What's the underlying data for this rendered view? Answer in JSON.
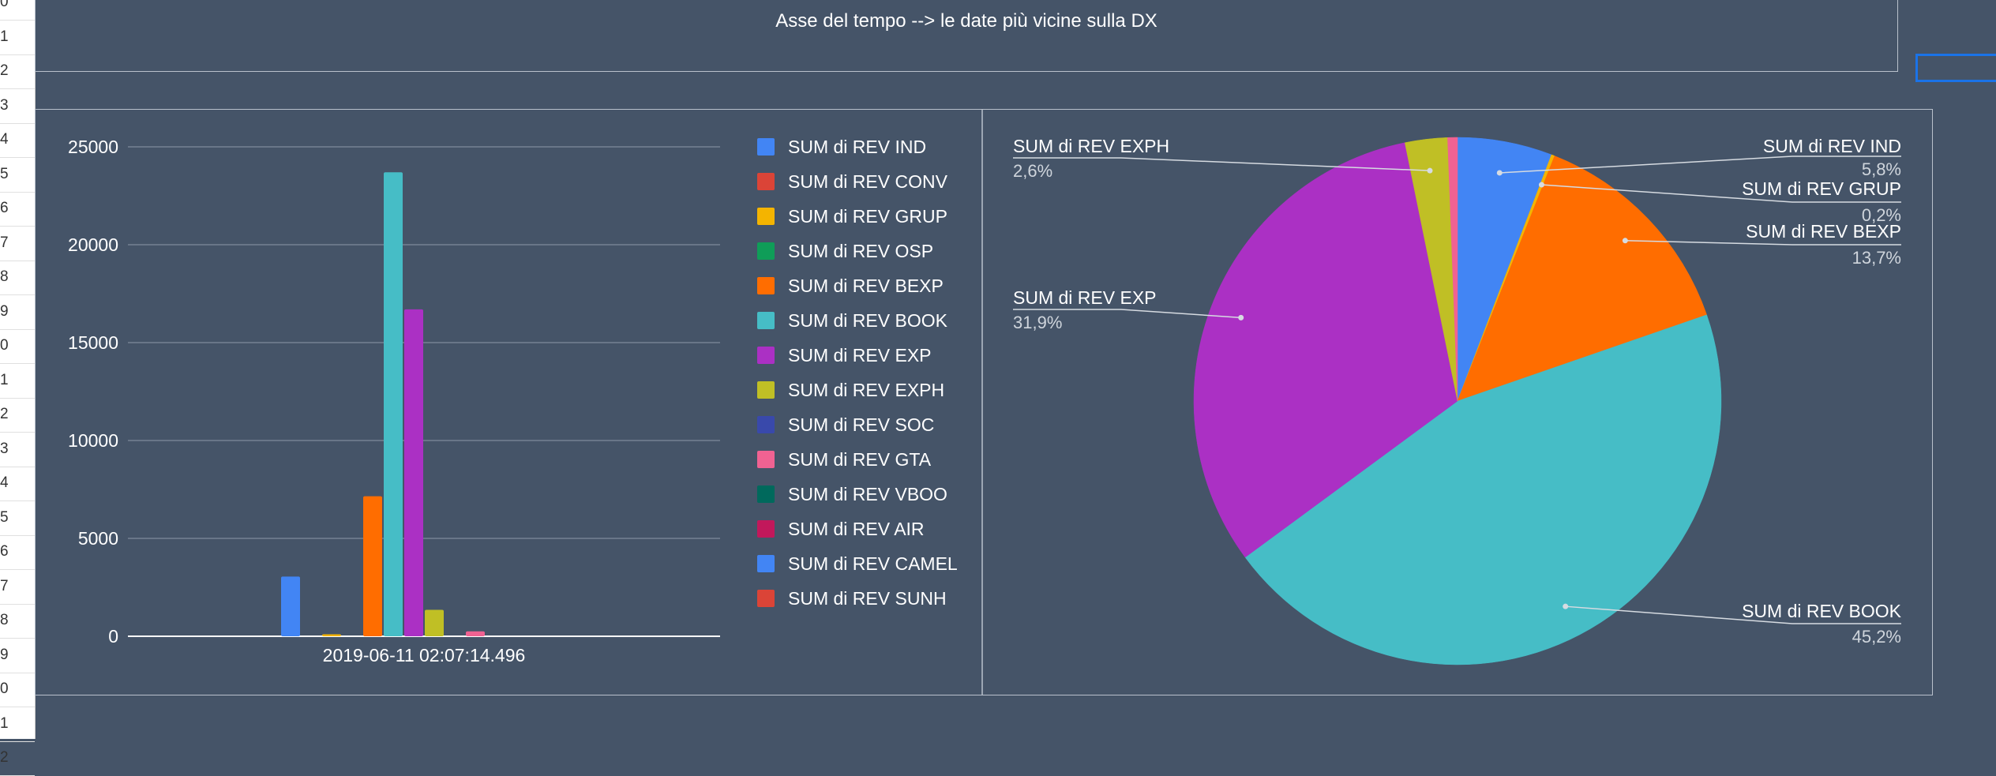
{
  "header": {
    "title": "Asse del tempo --> le date più vicine sulla DX"
  },
  "row_numbers": [
    "0",
    "1",
    "2",
    "3",
    "4",
    "5",
    "6",
    "7",
    "8",
    "9",
    "0",
    "1",
    "2",
    "3",
    "4",
    "5",
    "6",
    "7",
    "8",
    "9",
    "0",
    "1",
    "2"
  ],
  "colors": {
    "background": "#455468",
    "gridline": "#8d99a8",
    "frame": "#b9c1cc",
    "selection": "#1a73e8"
  },
  "chart_data": [
    {
      "type": "bar",
      "categories": [
        "2019-06-11 02:07:14.496"
      ],
      "ylim": [
        0,
        25000
      ],
      "yticks": [
        0,
        5000,
        10000,
        15000,
        20000,
        25000
      ],
      "legend_position": "right",
      "series": [
        {
          "name": "SUM di REV IND",
          "values": [
            3050
          ],
          "color": "#4285f4"
        },
        {
          "name": "SUM di REV CONV",
          "values": [
            0
          ],
          "color": "#db4437"
        },
        {
          "name": "SUM di REV GRUP",
          "values": [
            100
          ],
          "color": "#f4b400"
        },
        {
          "name": "SUM di REV OSP",
          "values": [
            0
          ],
          "color": "#0f9d58"
        },
        {
          "name": "SUM di REV BEXP",
          "values": [
            7150
          ],
          "color": "#ff6d00"
        },
        {
          "name": "SUM di REV BOOK",
          "values": [
            23700
          ],
          "color": "#46bdc6"
        },
        {
          "name": "SUM di REV EXP",
          "values": [
            16700
          ],
          "color": "#ab30c4"
        },
        {
          "name": "SUM di REV EXPH",
          "values": [
            1350
          ],
          "color": "#c0bf25"
        },
        {
          "name": "SUM di REV SOC",
          "values": [
            0
          ],
          "color": "#3949ab"
        },
        {
          "name": "SUM di REV GTA",
          "values": [
            250
          ],
          "color": "#f06292"
        },
        {
          "name": "SUM di REV VBOO",
          "values": [
            0
          ],
          "color": "#00695c"
        },
        {
          "name": "SUM di REV AIR",
          "values": [
            0
          ],
          "color": "#c2185b"
        },
        {
          "name": "SUM di REV CAMEL",
          "values": [
            0
          ],
          "color": "#4285f4"
        },
        {
          "name": "SUM di REV SUNH",
          "values": [
            0
          ],
          "color": "#db4437"
        }
      ]
    },
    {
      "type": "pie",
      "slices": [
        {
          "name": "SUM di REV IND",
          "value": 5.8,
          "label": "5,8%",
          "color": "#4285f4"
        },
        {
          "name": "SUM di REV GRUP",
          "value": 0.2,
          "label": "0,2%",
          "color": "#f4b400"
        },
        {
          "name": "SUM di REV BEXP",
          "value": 13.7,
          "label": "13,7%",
          "color": "#ff6d00"
        },
        {
          "name": "SUM di REV BOOK",
          "value": 45.2,
          "label": "45,2%",
          "color": "#46bdc6"
        },
        {
          "name": "SUM di REV EXP",
          "value": 31.9,
          "label": "31,9%",
          "color": "#ab30c4"
        },
        {
          "name": "SUM di REV EXPH",
          "value": 2.6,
          "label": "2,6%",
          "color": "#c0bf25"
        },
        {
          "name": "SUM di REV GTA",
          "value": 0.6,
          "label": "",
          "color": "#f06292"
        }
      ]
    }
  ]
}
